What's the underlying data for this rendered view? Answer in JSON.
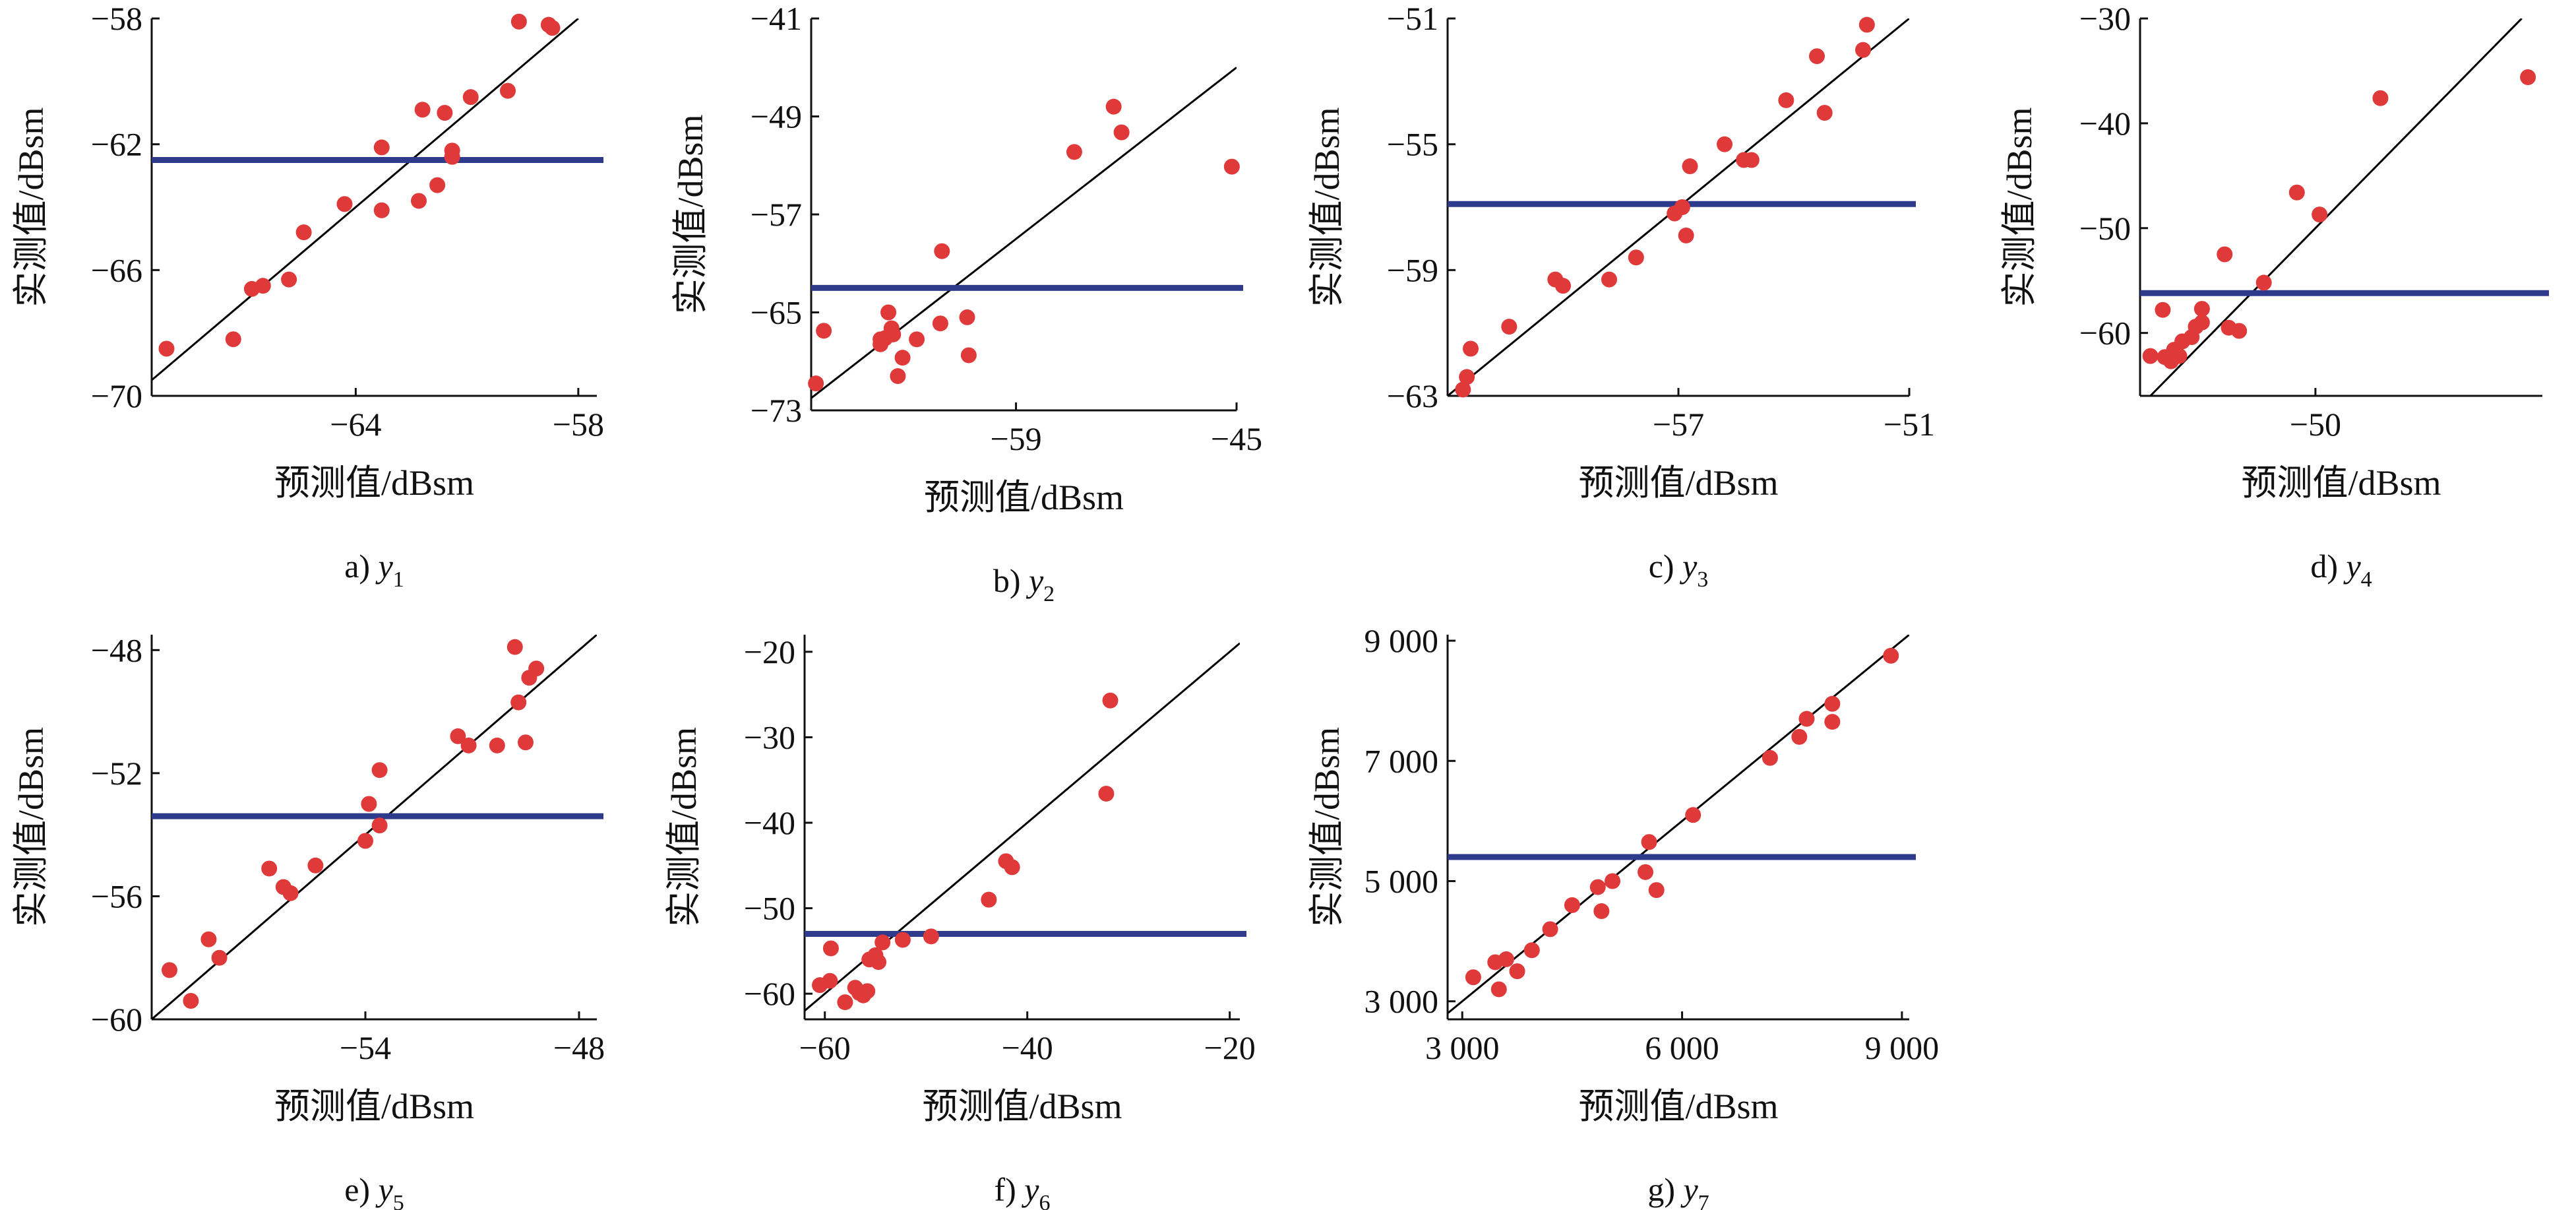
{
  "chart_data": [
    {
      "type": "scatter",
      "caption_prefix": "a) ",
      "caption_var": "y",
      "caption_sub": "1",
      "xlabel": "预测值/dBsm",
      "ylabel": "实测值/dBsm",
      "xlim": [
        -69.5,
        -57.5
      ],
      "ylim": [
        -70,
        -58
      ],
      "xticks": [
        -64,
        -58
      ],
      "xtick_labels": [
        "−64",
        "−58"
      ],
      "yticks": [
        -70,
        -66,
        -62,
        -58
      ],
      "ytick_labels": [
        "−70",
        "−66",
        "−62",
        "−58"
      ],
      "threshold_y": -62.5,
      "colors": {
        "points": "#e0393a",
        "threshold": "#2e3a8c",
        "fit": "#000000"
      },
      "points": [
        [
          -69.1,
          -68.5
        ],
        [
          -67.3,
          -68.2
        ],
        [
          -66.8,
          -66.6
        ],
        [
          -66.5,
          -66.5
        ],
        [
          -65.8,
          -66.3
        ],
        [
          -65.4,
          -64.8
        ],
        [
          -64.3,
          -63.9
        ],
        [
          -63.3,
          -64.1
        ],
        [
          -63.3,
          -62.1
        ],
        [
          -62.3,
          -63.8
        ],
        [
          -61.8,
          -63.3
        ],
        [
          -62.2,
          -60.9
        ],
        [
          -61.6,
          -61.0
        ],
        [
          -61.4,
          -62.2
        ],
        [
          -61.4,
          -62.4
        ],
        [
          -60.9,
          -60.5
        ],
        [
          -59.9,
          -60.3
        ],
        [
          -59.6,
          -58.1
        ],
        [
          -58.8,
          -58.2
        ],
        [
          -58.7,
          -58.3
        ]
      ]
    },
    {
      "type": "scatter",
      "caption_prefix": "b) ",
      "caption_var": "y",
      "caption_sub": "2",
      "xlabel": "预测值/dBsm",
      "ylabel": "实测值/dBsm",
      "xlim": [
        -72,
        -45
      ],
      "ylim": [
        -73,
        -41
      ],
      "xticks": [
        -59,
        -45
      ],
      "xtick_labels": [
        "−59",
        "−45"
      ],
      "yticks": [
        -73,
        -65,
        -57,
        -49,
        -41
      ],
      "ytick_labels": [
        "−73",
        "−65",
        "−57",
        "−49",
        "−41"
      ],
      "threshold_y": -63,
      "colors": {
        "points": "#e0393a",
        "threshold": "#2e3a8c",
        "fit": "#000000"
      },
      "points": [
        [
          -71.7,
          -70.8
        ],
        [
          -71.2,
          -66.5
        ],
        [
          -67.6,
          -67.2
        ],
        [
          -67.6,
          -67.6
        ],
        [
          -67.3,
          -67.1
        ],
        [
          -67.1,
          -65.0
        ],
        [
          -66.9,
          -66.3
        ],
        [
          -66.8,
          -66.8
        ],
        [
          -66.5,
          -70.2
        ],
        [
          -66.2,
          -68.7
        ],
        [
          -65.3,
          -67.2
        ],
        [
          -63.7,
          -60.0
        ],
        [
          -63.8,
          -65.9
        ],
        [
          -62.1,
          -65.4
        ],
        [
          -62.0,
          -68.5
        ],
        [
          -55.3,
          -51.9
        ],
        [
          -52.8,
          -48.2
        ],
        [
          -52.3,
          -50.3
        ],
        [
          -45.3,
          -53.1
        ]
      ]
    },
    {
      "type": "scatter",
      "caption_prefix": "c) ",
      "caption_var": "y",
      "caption_sub": "3",
      "xlabel": "预测值/dBsm",
      "ylabel": "实测值/dBsm",
      "xlim": [
        -63,
        -51
      ],
      "ylim": [
        -63,
        -51
      ],
      "xticks": [
        -57,
        -51
      ],
      "xtick_labels": [
        "−57",
        "−51"
      ],
      "yticks": [
        -63,
        -59,
        -55,
        -51
      ],
      "ytick_labels": [
        "−63",
        "−59",
        "−55",
        "−51"
      ],
      "threshold_y": -56.9,
      "colors": {
        "points": "#e0393a",
        "threshold": "#2e3a8c",
        "fit": "#000000"
      },
      "points": [
        [
          -62.6,
          -62.8
        ],
        [
          -62.5,
          -62.4
        ],
        [
          -62.4,
          -61.5
        ],
        [
          -61.4,
          -60.8
        ],
        [
          -60.2,
          -59.3
        ],
        [
          -60.0,
          -59.5
        ],
        [
          -58.8,
          -59.3
        ],
        [
          -58.1,
          -58.6
        ],
        [
          -57.1,
          -57.2
        ],
        [
          -56.9,
          -57.0
        ],
        [
          -56.8,
          -57.9
        ],
        [
          -56.7,
          -55.7
        ],
        [
          -55.8,
          -55.0
        ],
        [
          -55.3,
          -55.5
        ],
        [
          -55.1,
          -55.5
        ],
        [
          -54.2,
          -53.6
        ],
        [
          -53.4,
          -52.2
        ],
        [
          -53.2,
          -54.0
        ],
        [
          -52.2,
          -52.0
        ],
        [
          -52.1,
          -51.2
        ]
      ]
    },
    {
      "type": "scatter",
      "caption_prefix": "d) ",
      "caption_var": "y",
      "caption_sub": "4",
      "xlabel": "预测值/dBsm",
      "ylabel": "实测值/dBsm",
      "xlim": [
        -67,
        -28
      ],
      "ylim": [
        -66,
        -30
      ],
      "xticks": [
        -50
      ],
      "xtick_labels": [
        "−50"
      ],
      "yticks": [
        -60,
        -50,
        -40,
        -30
      ],
      "ytick_labels": [
        "−60",
        "−50",
        "−40",
        "−30"
      ],
      "threshold_y": -56.2,
      "colors": {
        "points": "#e0393a",
        "threshold": "#2e3a8c",
        "fit": "#000000"
      },
      "points": [
        [
          -66.0,
          -62.2
        ],
        [
          -64.8,
          -57.8
        ],
        [
          -64.6,
          -62.3
        ],
        [
          -64.0,
          -62.7
        ],
        [
          -63.9,
          -62.4
        ],
        [
          -63.7,
          -61.6
        ],
        [
          -63.2,
          -62.2
        ],
        [
          -62.9,
          -60.8
        ],
        [
          -62.0,
          -60.4
        ],
        [
          -61.6,
          -59.4
        ],
        [
          -61.0,
          -57.7
        ],
        [
          -61.0,
          -59.0
        ],
        [
          -58.8,
          -52.5
        ],
        [
          -57.4,
          -59.8
        ],
        [
          -58.4,
          -59.5
        ],
        [
          -55.0,
          -55.2
        ],
        [
          -51.8,
          -46.6
        ],
        [
          -49.6,
          -48.7
        ],
        [
          -43.7,
          -37.6
        ],
        [
          -29.4,
          -35.6
        ]
      ]
    },
    {
      "type": "scatter",
      "caption_prefix": "e) ",
      "caption_var": "y",
      "caption_sub": "5",
      "xlabel": "预测值/dBsm",
      "ylabel": "实测值/dBsm",
      "xlim": [
        -60,
        -47.5
      ],
      "ylim": [
        -60,
        -47.5
      ],
      "xticks": [
        -54,
        -48
      ],
      "xtick_labels": [
        "−54",
        "−48"
      ],
      "yticks": [
        -60,
        -56,
        -52,
        -48
      ],
      "ytick_labels": [
        "−60",
        "−56",
        "−52",
        "−48"
      ],
      "threshold_y": -53.4,
      "colors": {
        "points": "#e0393a",
        "threshold": "#2e3a8c",
        "fit": "#000000"
      },
      "points": [
        [
          -59.5,
          -58.4
        ],
        [
          -58.9,
          -59.4
        ],
        [
          -58.4,
          -57.4
        ],
        [
          -58.1,
          -58.0
        ],
        [
          -56.7,
          -55.1
        ],
        [
          -56.3,
          -55.7
        ],
        [
          -56.1,
          -55.9
        ],
        [
          -55.4,
          -55.0
        ],
        [
          -54.0,
          -54.2
        ],
        [
          -53.9,
          -53.0
        ],
        [
          -53.6,
          -53.7
        ],
        [
          -53.6,
          -51.9
        ],
        [
          -51.4,
          -50.8
        ],
        [
          -51.1,
          -51.1
        ],
        [
          -50.3,
          -51.1
        ],
        [
          -49.8,
          -47.9
        ],
        [
          -49.7,
          -49.7
        ],
        [
          -49.5,
          -51.0
        ],
        [
          -49.4,
          -48.9
        ],
        [
          -49.2,
          -48.6
        ]
      ]
    },
    {
      "type": "scatter",
      "caption_prefix": "f) ",
      "caption_var": "y",
      "caption_sub": "6",
      "xlabel": "预测值/dBsm",
      "ylabel": "实测值/dBsm",
      "xlim": [
        -62,
        -19
      ],
      "ylim": [
        -63,
        -18
      ],
      "xticks": [
        -60,
        -40,
        -20
      ],
      "xtick_labels": [
        "−60",
        "−40",
        "−20"
      ],
      "yticks": [
        -60,
        -50,
        -40,
        -30,
        -20
      ],
      "ytick_labels": [
        "−60",
        "−50",
        "−40",
        "−30",
        "−20"
      ],
      "threshold_y": -53,
      "colors": {
        "points": "#e0393a",
        "threshold": "#2e3a8c",
        "fit": "#000000"
      },
      "points": [
        [
          -60.5,
          -59.0
        ],
        [
          -59.5,
          -58.5
        ],
        [
          -59.4,
          -54.7
        ],
        [
          -58.0,
          -61.0
        ],
        [
          -57.0,
          -59.3
        ],
        [
          -56.6,
          -59.9
        ],
        [
          -56.2,
          -60.2
        ],
        [
          -55.8,
          -59.7
        ],
        [
          -55.6,
          -56.0
        ],
        [
          -55.0,
          -55.5
        ],
        [
          -54.7,
          -56.3
        ],
        [
          -54.3,
          -54.0
        ],
        [
          -52.3,
          -53.7
        ],
        [
          -49.5,
          -53.3
        ],
        [
          -43.8,
          -49.0
        ],
        [
          -42.1,
          -44.5
        ],
        [
          -41.5,
          -45.2
        ],
        [
          -32.2,
          -36.6
        ],
        [
          -31.8,
          -25.7
        ]
      ]
    },
    {
      "type": "scatter",
      "caption_prefix": "g) ",
      "caption_var": "y",
      "caption_sub": "7",
      "xlabel": "预测值/dBsm",
      "ylabel": "实测值/dBsm",
      "xlim": [
        2800,
        9100
      ],
      "ylim": [
        2700,
        9100
      ],
      "xticks": [
        3000,
        6000,
        9000
      ],
      "xtick_labels": [
        "3 000",
        "6 000",
        "9 000"
      ],
      "yticks": [
        3000,
        5000,
        7000,
        9000
      ],
      "ytick_labels": [
        "3 000",
        "5 000",
        "7 000",
        "9 000"
      ],
      "threshold_y": 5400,
      "colors": {
        "points": "#e0393a",
        "threshold": "#2e3a8c",
        "fit": "#000000"
      },
      "points": [
        [
          3150,
          3400
        ],
        [
          3500,
          3200
        ],
        [
          3450,
          3650
        ],
        [
          3600,
          3700
        ],
        [
          3750,
          3500
        ],
        [
          3950,
          3850
        ],
        [
          4200,
          4200
        ],
        [
          4500,
          4600
        ],
        [
          4900,
          4500
        ],
        [
          4850,
          4900
        ],
        [
          5050,
          5000
        ],
        [
          5550,
          5650
        ],
        [
          5500,
          5150
        ],
        [
          5650,
          4850
        ],
        [
          6150,
          6100
        ],
        [
          7200,
          7050
        ],
        [
          7600,
          7400
        ],
        [
          7700,
          7700
        ],
        [
          8050,
          7950
        ],
        [
          8050,
          7650
        ],
        [
          8850,
          8750
        ]
      ]
    }
  ]
}
